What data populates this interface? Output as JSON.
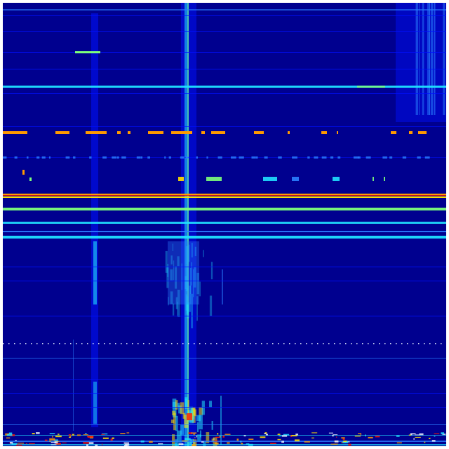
{
  "chart_data": {
    "type": "heatmap",
    "colormap": "jet",
    "title": "",
    "xlabel": "",
    "ylabel": "",
    "grid": false,
    "legend": "none"
  },
  "colors": {
    "background": "#00008f",
    "blue": "#0010ff",
    "light_blue": "#2a7fff",
    "cyan": "#20e0ff",
    "green": "#7dff7a",
    "yellow": "#ffe000",
    "orange": "#ff9a00",
    "red": "#ff1a00",
    "white": "#e8f0ff"
  }
}
